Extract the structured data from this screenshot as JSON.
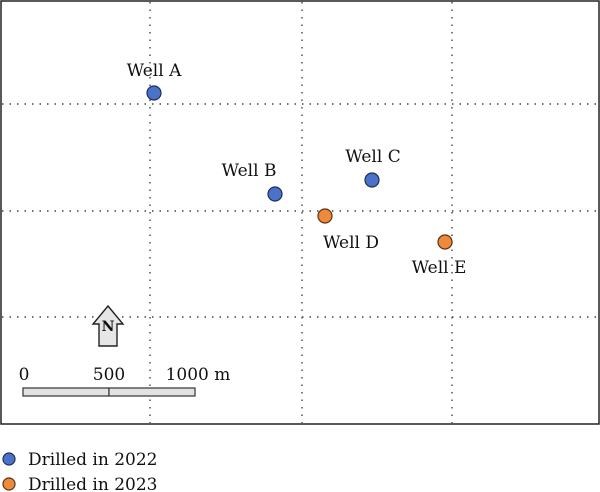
{
  "map": {
    "wells": [
      {
        "name": "Well A",
        "group": "2022"
      },
      {
        "name": "Well B",
        "group": "2022"
      },
      {
        "name": "Well C",
        "group": "2022"
      },
      {
        "name": "Well D",
        "group": "2023"
      },
      {
        "name": "Well E",
        "group": "2023"
      }
    ],
    "north_arrow": {
      "letter": "N"
    },
    "scale_bar": {
      "labels": [
        "0",
        "500",
        "1000 m"
      ]
    }
  },
  "legend": {
    "items": [
      {
        "label": "Drilled in 2022",
        "color": "#4a72c8"
      },
      {
        "label": "Drilled in 2023",
        "color": "#ef8a3c"
      }
    ]
  },
  "colors": {
    "group_2022": "#4a72c8",
    "group_2023": "#ef8a3c"
  }
}
